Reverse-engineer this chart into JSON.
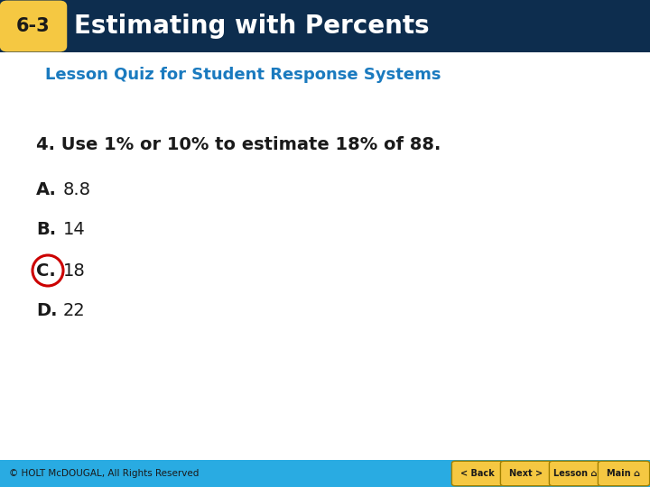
{
  "header_bg_color": "#0d2d4e",
  "header_text": "Estimating with Percents",
  "header_badge_bg": "#f5c842",
  "header_badge_text": "6-3",
  "header_badge_text_color": "#1a1a1a",
  "header_text_color": "#ffffff",
  "subtitle_text": "Lesson Quiz for Student Response Systems",
  "subtitle_color": "#1a7abf",
  "question_text": "4. Use 1% or 10% to estimate 18% of 88.",
  "question_color": "#1a1a1a",
  "options": [
    {
      "label": "A.",
      "value": "8.8",
      "circle": false
    },
    {
      "label": "B.",
      "value": "14",
      "circle": false
    },
    {
      "label": "C.",
      "value": "18",
      "circle": true
    },
    {
      "label": "D.",
      "value": "22",
      "circle": false
    }
  ],
  "option_label_color": "#1a1a1a",
  "option_value_color": "#1a1a1a",
  "circle_color": "#cc0000",
  "footer_bg_color": "#29abe2",
  "footer_text": "© HOLT McDOUGAL, All Rights Reserved",
  "footer_text_color": "#1a1a1a",
  "bg_color": "#ffffff",
  "button_labels": [
    "< Back",
    "Next >",
    "Lesson ⌂",
    "Main ⌂"
  ],
  "button_bg": "#f5c842",
  "button_text_color": "#1a1a1a"
}
